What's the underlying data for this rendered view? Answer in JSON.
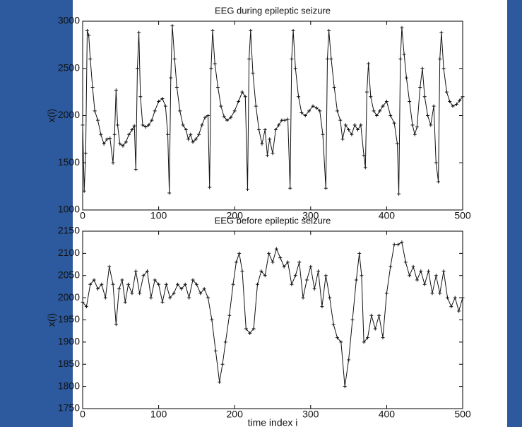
{
  "chart_data": [
    {
      "type": "line",
      "title": "EEG during epileptic seizure",
      "ylabel": "x(i)",
      "color": "#111111",
      "marker": "+",
      "xlim": [
        0,
        500
      ],
      "xticks": [
        0,
        100,
        200,
        300,
        400,
        500
      ],
      "ylim": [
        1000,
        3000
      ],
      "yticks": [
        1000,
        1500,
        2000,
        2500,
        3000
      ],
      "x": [
        0,
        2,
        4,
        6,
        8,
        10,
        13,
        16,
        20,
        24,
        28,
        32,
        36,
        40,
        42,
        44,
        46,
        49,
        53,
        57,
        61,
        65,
        68,
        70,
        72,
        74,
        76,
        79,
        83,
        87,
        91,
        95,
        100,
        105,
        109,
        112,
        114,
        116,
        118,
        121,
        124,
        128,
        132,
        136,
        139,
        142,
        145,
        149,
        153,
        157,
        161,
        165,
        167,
        169,
        171,
        174,
        178,
        182,
        186,
        190,
        195,
        200,
        205,
        210,
        214,
        217,
        219,
        221,
        224,
        228,
        232,
        236,
        240,
        243,
        246,
        250,
        254,
        258,
        262,
        266,
        270,
        273,
        275,
        277,
        280,
        284,
        288,
        293,
        298,
        303,
        308,
        312,
        316,
        320,
        322,
        324,
        327,
        331,
        335,
        339,
        342,
        346,
        350,
        354,
        358,
        362,
        366,
        370,
        372,
        374,
        376,
        379,
        383,
        387,
        391,
        395,
        400,
        405,
        410,
        414,
        416,
        418,
        420,
        423,
        426,
        430,
        434,
        437,
        440,
        444,
        447,
        450,
        454,
        458,
        462,
        465,
        468,
        470,
        472,
        475,
        479,
        483,
        487,
        492,
        496,
        500
      ],
      "values": [
        1900,
        1200,
        1600,
        2900,
        2850,
        2600,
        2300,
        2050,
        1950,
        1800,
        1700,
        1750,
        1760,
        1500,
        1800,
        2270,
        1900,
        1700,
        1680,
        1720,
        1800,
        1850,
        1890,
        1430,
        2500,
        2880,
        2200,
        1900,
        1880,
        1900,
        1950,
        2050,
        2150,
        2180,
        2100,
        1800,
        1180,
        2400,
        2950,
        2600,
        2300,
        2050,
        1900,
        1850,
        1750,
        1800,
        1720,
        1750,
        1800,
        1900,
        1980,
        2000,
        1240,
        2500,
        2900,
        2550,
        2300,
        2100,
        1990,
        1950,
        1980,
        2050,
        2150,
        2250,
        2200,
        1220,
        2600,
        2900,
        2450,
        2100,
        1850,
        1700,
        1850,
        1580,
        1750,
        1600,
        1850,
        1900,
        1950,
        1950,
        1960,
        1230,
        2600,
        2900,
        2500,
        2200,
        2030,
        2000,
        2050,
        2100,
        2080,
        2050,
        1800,
        1230,
        2600,
        2900,
        2600,
        2300,
        2050,
        1950,
        1750,
        1900,
        1850,
        1800,
        1900,
        1850,
        1900,
        1580,
        1450,
        2250,
        2550,
        2200,
        2050,
        2000,
        2050,
        2100,
        2150,
        2000,
        1920,
        1700,
        1170,
        2600,
        2930,
        2650,
        2400,
        2150,
        1900,
        1800,
        1880,
        2300,
        2500,
        2200,
        2000,
        1900,
        2100,
        1500,
        1300,
        2600,
        2880,
        2500,
        2250,
        2150,
        2100,
        2120,
        2160,
        2200
      ]
    },
    {
      "type": "line",
      "title": "EEG before epileptic seizure",
      "ylabel": "x(i)",
      "xlabel": "time index i",
      "color": "#111111",
      "marker": "+",
      "xlim": [
        0,
        500
      ],
      "xticks": [
        0,
        100,
        200,
        300,
        400,
        500
      ],
      "ylim": [
        1750,
        2150
      ],
      "yticks": [
        1750,
        1800,
        1850,
        1900,
        1950,
        2000,
        2050,
        2100,
        2150
      ],
      "x": [
        0,
        5,
        10,
        15,
        20,
        25,
        30,
        35,
        40,
        44,
        48,
        52,
        56,
        60,
        65,
        70,
        75,
        80,
        85,
        90,
        95,
        100,
        105,
        110,
        115,
        120,
        125,
        130,
        135,
        140,
        145,
        150,
        155,
        160,
        165,
        170,
        175,
        180,
        184,
        188,
        193,
        198,
        202,
        206,
        210,
        215,
        220,
        225,
        230,
        235,
        240,
        245,
        250,
        255,
        260,
        265,
        270,
        275,
        280,
        285,
        290,
        295,
        300,
        305,
        310,
        315,
        320,
        325,
        330,
        335,
        340,
        345,
        350,
        355,
        360,
        364,
        367,
        370,
        375,
        380,
        385,
        390,
        395,
        400,
        405,
        410,
        415,
        420,
        425,
        430,
        435,
        440,
        445,
        450,
        455,
        460,
        465,
        470,
        475,
        480,
        485,
        490,
        495,
        500
      ],
      "values": [
        1990,
        1980,
        2030,
        2040,
        2020,
        2030,
        2000,
        2070,
        2030,
        1940,
        2020,
        2040,
        1990,
        2030,
        2010,
        2060,
        2010,
        2050,
        2060,
        2000,
        2040,
        2030,
        1990,
        2030,
        2000,
        2010,
        2030,
        2020,
        2030,
        2000,
        2040,
        2030,
        2010,
        2020,
        2000,
        1950,
        1880,
        1810,
        1850,
        1900,
        1960,
        2030,
        2080,
        2100,
        2060,
        1930,
        1920,
        1930,
        2030,
        2060,
        2050,
        2100,
        2080,
        2110,
        2090,
        2070,
        2080,
        2030,
        2050,
        2080,
        2000,
        2040,
        2070,
        2020,
        2060,
        1980,
        2050,
        2000,
        1940,
        1910,
        1900,
        1800,
        1860,
        1950,
        2040,
        2100,
        2050,
        1900,
        1910,
        1960,
        1930,
        1960,
        1910,
        2010,
        2070,
        2120,
        2120,
        2125,
        2080,
        2050,
        2070,
        2040,
        2060,
        2030,
        2060,
        2010,
        2050,
        2010,
        2060,
        2000,
        1980,
        2000,
        1970,
        2000
      ]
    }
  ]
}
